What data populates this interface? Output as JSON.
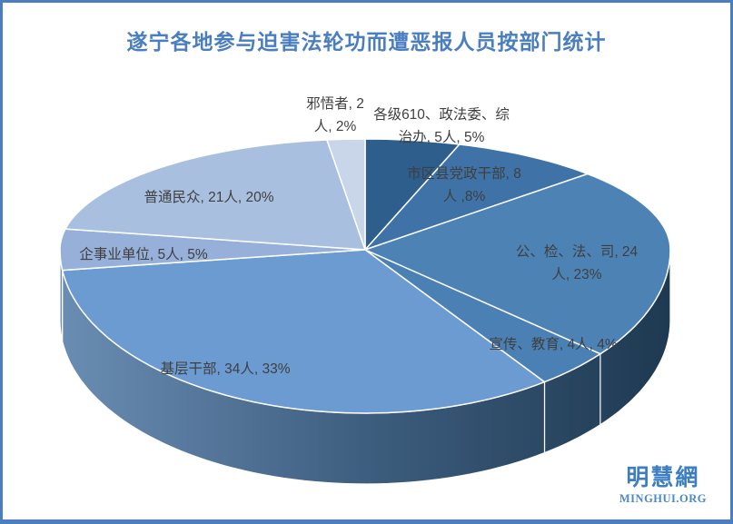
{
  "title": "遂宁各地参与迫害法轮功而遭恶报人员按部门统计",
  "theme": {
    "border_color": "#4A7EBF",
    "title_color": "#4A7EBF",
    "label_color": "#3F3F3F",
    "background": "#FFFFFF"
  },
  "watermark": {
    "cn": "明慧網",
    "en": "MINGHUI.ORG",
    "color": "#3D7EC3",
    "color_en": "#4C88CB"
  },
  "chart_data": {
    "type": "pie",
    "effect": "3d",
    "title": "遂宁各地参与迫害法轮功而遭恶报人员按部门统计",
    "unit": "人",
    "start_angle_deg": 0,
    "direction": "clockwise",
    "legend": "none",
    "slices": [
      {
        "label": "各级610、政法委、综治办",
        "count": 5,
        "pct": 5,
        "color": "#2D5E8C",
        "label_lines": [
          "各级610、政法委、综",
          "治办, 5人, 5%"
        ]
      },
      {
        "label": "市区县党政干部",
        "count": 8,
        "pct": 8,
        "color": "#3F73A7",
        "label_lines": [
          "市区县党政干部, 8",
          "人 ,8%"
        ]
      },
      {
        "label": "公、检、法、司",
        "count": 24,
        "pct": 23,
        "color": "#4D82B5",
        "label_lines": [
          "公、检、法、司, 24",
          "人, 23%"
        ]
      },
      {
        "label": "宣传、教育",
        "count": 4,
        "pct": 4,
        "color": "#4A80B4",
        "label_lines": [
          "宣传、教育, 4人, 4%"
        ]
      },
      {
        "label": "基层干部",
        "count": 34,
        "pct": 33,
        "color": "#6C9BD2",
        "label_lines": [
          "基层干部, 34人, 33%"
        ]
      },
      {
        "label": "企事业单位",
        "count": 5,
        "pct": 5,
        "color": "#96B0D9",
        "label_lines": [
          "企事业单位, 5人, 5%"
        ]
      },
      {
        "label": "普通民众",
        "count": 21,
        "pct": 20,
        "color": "#A9BFDF",
        "label_lines": [
          "普通民众, 21人, 20%"
        ]
      },
      {
        "label": "邪悟者",
        "count": 2,
        "pct": 2,
        "color": "#C9D6EA",
        "label_lines": [
          "邪悟者, 2",
          "人, 2%"
        ]
      }
    ],
    "side_gradient": [
      "#6A8DB3",
      "#3E5E7F",
      "#1E3951"
    ],
    "slice_outline_color": "#FFFFFF"
  }
}
